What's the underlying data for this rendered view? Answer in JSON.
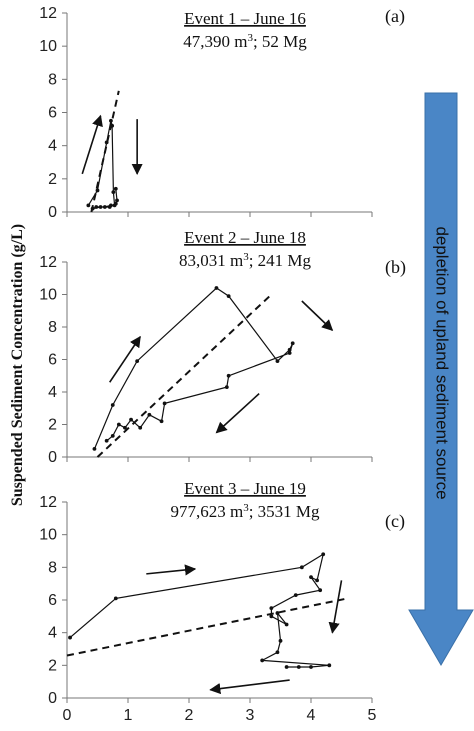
{
  "figure": {
    "ylabel": "Suspended Sediment Concentration (g/L)",
    "side_arrow_text": "depletion of upland sediment source",
    "side_arrow_color": "#4a86c6"
  },
  "chart_data": [
    {
      "type": "line",
      "panel_label": "(a)",
      "title": "Event 1 – June 16",
      "subtitle_prefix": "47,390 m",
      "subtitle_sup": "3",
      "subtitle_suffix": "; 52 Mg",
      "xlim": [
        0,
        5
      ],
      "ylim": [
        0,
        12
      ],
      "yticks": [
        "0",
        "2",
        "4",
        "6",
        "8",
        "10",
        "12"
      ],
      "series": [
        {
          "role": "hysteresis",
          "points": [
            [
              0.35,
              0.4
            ],
            [
              0.5,
              1.3
            ],
            [
              0.65,
              4.2
            ],
            [
              0.72,
              5.5
            ],
            [
              0.74,
              5.2
            ],
            [
              0.76,
              1.2
            ],
            [
              0.78,
              0.4
            ],
            [
              0.72,
              0.4
            ],
            [
              0.62,
              0.3
            ],
            [
              0.48,
              0.3
            ],
            [
              0.42,
              0.2
            ],
            [
              0.55,
              0.3
            ],
            [
              0.7,
              0.3
            ],
            [
              0.8,
              0.5
            ],
            [
              0.82,
              0.7
            ],
            [
              0.8,
              1.4
            ]
          ]
        },
        {
          "role": "trend",
          "points": [
            [
              0.4,
              0
            ],
            [
              0.85,
              7.3
            ]
          ]
        }
      ],
      "arrows": [
        {
          "from": [
            0.25,
            2.3
          ],
          "to": [
            0.55,
            5.8
          ]
        },
        {
          "from": [
            1.15,
            5.6
          ],
          "to": [
            1.15,
            2.3
          ]
        }
      ]
    },
    {
      "type": "line",
      "panel_label": "(b)",
      "title": "Event 2 – June 18",
      "subtitle_prefix": "83,031 m",
      "subtitle_sup": "3",
      "subtitle_suffix": "; 241 Mg",
      "xlim": [
        0,
        5
      ],
      "ylim": [
        0,
        12
      ],
      "yticks": [
        "0",
        "2",
        "4",
        "6",
        "8",
        "10",
        "12"
      ],
      "series": [
        {
          "role": "hysteresis",
          "points": [
            [
              0.45,
              0.5
            ],
            [
              0.75,
              3.2
            ],
            [
              1.15,
              5.9
            ],
            [
              2.45,
              10.4
            ],
            [
              2.65,
              9.9
            ],
            [
              3.45,
              5.9
            ],
            [
              3.65,
              6.6
            ],
            [
              3.7,
              7.0
            ],
            [
              3.65,
              6.4
            ],
            [
              2.65,
              5.0
            ],
            [
              2.62,
              4.3
            ],
            [
              1.6,
              3.3
            ],
            [
              1.55,
              2.2
            ],
            [
              1.35,
              2.6
            ],
            [
              1.2,
              1.8
            ],
            [
              1.05,
              2.3
            ],
            [
              0.95,
              1.8
            ],
            [
              0.85,
              2.0
            ],
            [
              0.75,
              1.3
            ],
            [
              0.65,
              1.0
            ]
          ]
        },
        {
          "role": "trend",
          "points": [
            [
              0.5,
              0
            ],
            [
              3.35,
              10
            ]
          ]
        }
      ],
      "arrows": [
        {
          "from": [
            0.7,
            4.6
          ],
          "to": [
            1.2,
            7.4
          ]
        },
        {
          "from": [
            3.85,
            9.6
          ],
          "to": [
            4.35,
            7.8
          ]
        },
        {
          "from": [
            3.15,
            3.9
          ],
          "to": [
            2.45,
            1.5
          ]
        }
      ]
    },
    {
      "type": "line",
      "panel_label": "(c)",
      "title": "Event 3 – June 19",
      "subtitle_prefix": "977,623 m",
      "subtitle_sup": "3",
      "subtitle_suffix": "; 3531 Mg",
      "xlim": [
        0,
        5
      ],
      "ylim": [
        0,
        12
      ],
      "xticks": [
        "0",
        "1",
        "2",
        "3",
        "4",
        "5"
      ],
      "yticks": [
        "0",
        "2",
        "4",
        "6",
        "8",
        "10",
        "12"
      ],
      "series": [
        {
          "role": "hysteresis",
          "points": [
            [
              0.05,
              3.7
            ],
            [
              0.8,
              6.1
            ],
            [
              3.85,
              8.0
            ],
            [
              4.2,
              8.8
            ],
            [
              4.1,
              7.2
            ],
            [
              4.0,
              7.4
            ],
            [
              4.15,
              6.6
            ],
            [
              3.75,
              6.3
            ],
            [
              3.35,
              5.5
            ],
            [
              3.35,
              5.0
            ],
            [
              3.6,
              4.5
            ],
            [
              3.45,
              5.2
            ],
            [
              3.5,
              3.5
            ],
            [
              3.45,
              2.8
            ],
            [
              3.2,
              2.3
            ],
            [
              4.3,
              2.0
            ],
            [
              4.0,
              1.9
            ],
            [
              3.8,
              1.9
            ],
            [
              3.6,
              1.9
            ]
          ]
        },
        {
          "role": "trend",
          "points": [
            [
              0,
              2.6
            ],
            [
              4.6,
              6.1
            ]
          ]
        }
      ],
      "arrows": [
        {
          "from": [
            1.3,
            7.6
          ],
          "to": [
            2.1,
            7.9
          ]
        },
        {
          "from": [
            4.5,
            7.2
          ],
          "to": [
            4.35,
            4.0
          ]
        },
        {
          "from": [
            3.65,
            1.1
          ],
          "to": [
            2.35,
            0.5
          ]
        }
      ]
    }
  ]
}
